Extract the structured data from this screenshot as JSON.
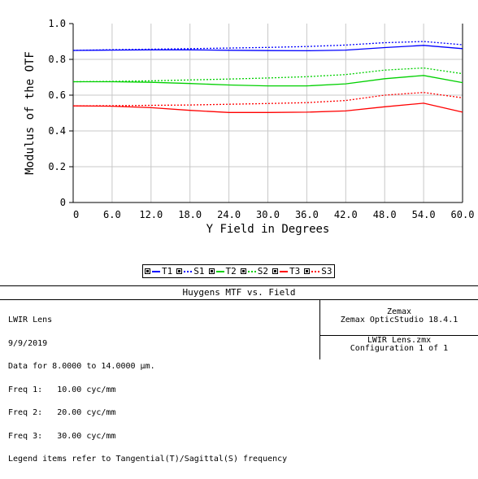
{
  "chart_data": {
    "type": "line",
    "xlabel": "Y Field in Degrees",
    "ylabel": "Modulus of the OTF",
    "xlim": [
      0,
      60
    ],
    "ylim": [
      0,
      1.0
    ],
    "x_ticks": [
      "0",
      "6.0",
      "12.0",
      "18.0",
      "24.0",
      "30.0",
      "36.0",
      "42.0",
      "48.0",
      "54.0",
      "60.0"
    ],
    "y_ticks": [
      "0",
      "0.2",
      "0.4",
      "0.6",
      "0.8",
      "1.0"
    ],
    "grid": true,
    "x": [
      0,
      6,
      12,
      18,
      24,
      30,
      36,
      42,
      48,
      54,
      60
    ],
    "series": [
      {
        "name": "T1",
        "color": "#0000ff",
        "dash": "solid",
        "values": [
          0.85,
          0.852,
          0.853,
          0.853,
          0.851,
          0.849,
          0.848,
          0.852,
          0.866,
          0.878,
          0.86
        ]
      },
      {
        "name": "S1",
        "color": "#0000ff",
        "dash": "dotted",
        "values": [
          0.85,
          0.854,
          0.857,
          0.86,
          0.863,
          0.867,
          0.872,
          0.88,
          0.893,
          0.9,
          0.882
        ]
      },
      {
        "name": "T2",
        "color": "#00d000",
        "dash": "solid",
        "values": [
          0.675,
          0.675,
          0.672,
          0.665,
          0.657,
          0.652,
          0.652,
          0.663,
          0.692,
          0.71,
          0.67
        ]
      },
      {
        "name": "S2",
        "color": "#00d000",
        "dash": "dotted",
        "values": [
          0.675,
          0.677,
          0.68,
          0.685,
          0.69,
          0.696,
          0.703,
          0.715,
          0.74,
          0.752,
          0.72
        ]
      },
      {
        "name": "T3",
        "color": "#ff0000",
        "dash": "solid",
        "values": [
          0.54,
          0.538,
          0.53,
          0.515,
          0.503,
          0.503,
          0.505,
          0.512,
          0.535,
          0.555,
          0.505
        ]
      },
      {
        "name": "S3",
        "color": "#ff0000",
        "dash": "dotted",
        "values": [
          0.54,
          0.541,
          0.543,
          0.545,
          0.549,
          0.553,
          0.558,
          0.57,
          0.6,
          0.615,
          0.585
        ]
      }
    ]
  },
  "legend": {
    "items": [
      {
        "label": "T1",
        "color": "#0000ff",
        "dash": "solid"
      },
      {
        "label": "S1",
        "color": "#0000ff",
        "dash": "dotted"
      },
      {
        "label": "T2",
        "color": "#00d000",
        "dash": "solid"
      },
      {
        "label": "S2",
        "color": "#00d000",
        "dash": "dotted"
      },
      {
        "label": "T3",
        "color": "#ff0000",
        "dash": "solid"
      },
      {
        "label": "S3",
        "color": "#ff0000",
        "dash": "dotted"
      }
    ]
  },
  "info": {
    "title": "Huygens MTF vs. Field",
    "lines": [
      "LWIR Lens",
      "9/9/2019",
      "Data for 8.0000 to 14.0000 µm.",
      "Freq 1:   10.00 cyc/mm",
      "Freq 2:   20.00 cyc/mm",
      "Freq 3:   30.00 cyc/mm",
      "Legend items refer to Tangential(T)/Sagittal(S) frequency"
    ],
    "company": "Zemax",
    "product": "Zemax OpticStudio 18.4.1",
    "file": "LWIR Lens.zmx",
    "configuration": "Configuration 1 of 1"
  }
}
